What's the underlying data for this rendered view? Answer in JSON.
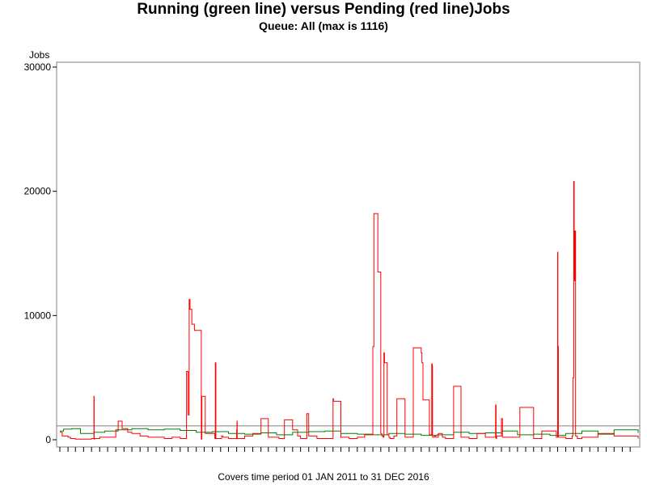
{
  "chart_data": {
    "type": "line",
    "title": "Running (green line) versus Pending (red line)Jobs",
    "subtitle": "Queue: All (max is 1116)",
    "ylabel": "Jobs",
    "footer": "Covers time period 01 JAN 2011 to 31 DEC 2016",
    "x_range": [
      "2011-01-01",
      "2016-12-31"
    ],
    "ylim": [
      0,
      30000
    ],
    "y_ticks": [
      0,
      10000,
      20000,
      30000
    ],
    "y_tick_labels": [
      "0",
      "10000",
      "20000",
      "30000"
    ],
    "reference_line": 1116,
    "grid": false,
    "series": [
      {
        "color": "#008000",
        "x": [
          "2011-01-01",
          "2011-01-15",
          "2011-02-15",
          "2011-03-20",
          "2011-05-10",
          "2011-06-20",
          "2011-08-10",
          "2011-10-01",
          "2011-12-01",
          "2012-02-01",
          "2012-04-01",
          "2012-06-01",
          "2012-08-01",
          "2012-10-01",
          "2012-12-01",
          "2013-02-01",
          "2013-04-01",
          "2013-06-01",
          "2013-08-01",
          "2013-10-01",
          "2013-12-01",
          "2014-02-01",
          "2014-04-01",
          "2014-06-01",
          "2014-08-01",
          "2014-10-01",
          "2014-12-01",
          "2015-02-01",
          "2015-04-01",
          "2015-06-01",
          "2015-08-01",
          "2015-10-01",
          "2015-12-01",
          "2016-02-01",
          "2016-04-01",
          "2016-06-01",
          "2016-08-01",
          "2016-10-01",
          "2016-12-31"
        ],
        "y": [
          700,
          850,
          900,
          500,
          600,
          700,
          800,
          900,
          800,
          850,
          750,
          600,
          650,
          500,
          450,
          550,
          400,
          600,
          650,
          700,
          500,
          450,
          400,
          500,
          450,
          350,
          400,
          600,
          500,
          550,
          700,
          400,
          450,
          350,
          500,
          700,
          450,
          800,
          550
        ]
      },
      {
        "color": "#ff0000",
        "x": [
          "2011-01-01",
          "2011-01-10",
          "2011-02-01",
          "2011-02-10",
          "2011-03-01",
          "2011-05-01",
          "2011-05-10",
          "2011-05-11",
          "2011-05-12",
          "2011-06-01",
          "2011-08-01",
          "2011-08-10",
          "2011-08-25",
          "2011-09-15",
          "2011-10-01",
          "2011-11-01",
          "2011-12-01",
          "2012-02-01",
          "2012-03-01",
          "2012-04-01",
          "2012-04-25",
          "2012-05-01",
          "2012-05-05",
          "2012-05-08",
          "2012-05-15",
          "2012-05-25",
          "2012-06-20",
          "2012-06-22",
          "2012-07-05",
          "2012-08-10",
          "2012-08-12",
          "2012-08-14",
          "2012-09-05",
          "2012-09-10",
          "2012-10-01",
          "2012-11-01",
          "2012-11-02",
          "2012-11-03",
          "2012-12-01",
          "2013-01-01",
          "2013-02-01",
          "2013-03-01",
          "2013-04-10",
          "2013-05-01",
          "2013-06-01",
          "2013-06-20",
          "2013-07-01",
          "2013-07-25",
          "2013-08-01",
          "2013-09-01",
          "2013-11-01",
          "2013-11-03",
          "2013-12-01",
          "2014-01-01",
          "2014-02-01",
          "2014-03-01",
          "2014-04-01",
          "2014-04-05",
          "2014-04-20",
          "2014-05-01",
          "2014-05-05",
          "2014-05-10",
          "2014-05-13",
          "2014-05-15",
          "2014-05-25",
          "2014-06-01",
          "2014-06-05",
          "2014-06-20",
          "2014-07-01",
          "2014-08-01",
          "2014-09-01",
          "2014-10-01",
          "2014-10-04",
          "2014-10-08",
          "2014-11-01",
          "2014-11-10",
          "2014-11-12",
          "2014-11-13",
          "2014-11-20",
          "2014-11-25",
          "2014-12-05",
          "2014-12-20",
          "2015-01-01",
          "2015-02-01",
          "2015-03-01",
          "2015-04-01",
          "2015-05-01",
          "2015-06-01",
          "2015-07-10",
          "2015-07-12",
          "2015-07-14",
          "2015-08-01",
          "2015-08-05",
          "2015-10-01",
          "2015-10-10",
          "2015-12-01",
          "2016-01-01",
          "2016-02-25",
          "2016-03-01",
          "2016-03-02",
          "2016-03-04",
          "2016-04-01",
          "2016-04-25",
          "2016-04-28",
          "2016-05-01",
          "2016-05-03",
          "2016-05-05",
          "2016-05-08",
          "2016-05-15",
          "2016-06-01",
          "2016-08-01",
          "2016-10-01",
          "2016-12-31"
        ],
        "y": [
          600,
          300,
          200,
          100,
          50,
          100,
          3500,
          50,
          100,
          200,
          800,
          1500,
          900,
          600,
          500,
          300,
          200,
          100,
          200,
          100,
          5500,
          2000,
          11300,
          10500,
          9300,
          8800,
          50,
          3500,
          500,
          100,
          6200,
          100,
          300,
          200,
          100,
          800,
          1500,
          100,
          300,
          500,
          1700,
          200,
          100,
          1600,
          800,
          300,
          100,
          2100,
          300,
          100,
          3300,
          3100,
          200,
          100,
          200,
          400,
          7500,
          18200,
          13500,
          500,
          300,
          200,
          7000,
          6200,
          400,
          200,
          100,
          300,
          3300,
          200,
          7400,
          7000,
          6200,
          3200,
          400,
          6100,
          5900,
          200,
          300,
          200,
          500,
          200,
          100,
          4300,
          200,
          100,
          500,
          200,
          2800,
          100,
          300,
          1700,
          200,
          200,
          2600,
          100,
          700,
          200,
          15100,
          7500,
          200,
          100,
          300,
          5000,
          20800,
          12800,
          16800,
          300,
          100,
          200,
          500,
          300,
          100
        ]
      }
    ]
  }
}
